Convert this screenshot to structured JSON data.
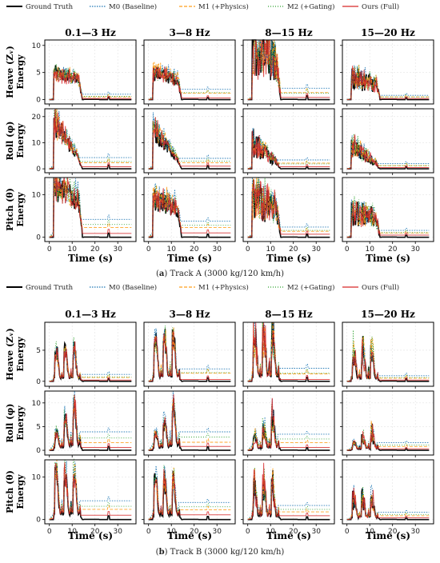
{
  "chart_data": {
    "type": "line",
    "legend": {
      "placement": "top",
      "entries": [
        "Ground Truth",
        "M0 (Baseline)",
        "M1 (+Physics)",
        "M2 (+Gating)",
        "Ours (Full)"
      ]
    },
    "colors": {
      "Ground Truth": "#000000",
      "M0 (Baseline)": "#1f77b4",
      "M1 (+Physics)": "#ff9f1c",
      "M2 (+Gating)": "#2ca02c",
      "Ours (Full)": "#d62728"
    },
    "columns": [
      "0.1—3 Hz",
      "3—8 Hz",
      "8—15 Hz",
      "15—20 Hz"
    ],
    "xlabel": "Time (s)",
    "xlim": [
      -2,
      38
    ],
    "xticks": [
      "0",
      "10",
      "20",
      "30"
    ],
    "grid": true,
    "panels": [
      {
        "caption_label": "a",
        "caption_text": "Track A (3000 kg/120 km/h)",
        "rows": [
          {
            "ylabel": "Heave (Zᵥ) Energy",
            "ylim": [
              -0.8,
              11
            ],
            "yticks": [
              "0",
              "5",
              "10"
            ],
            "peak": [
              5,
              5,
              9,
              4
            ],
            "plateau": {
              "M0 (Baseline)": [
                1.0,
                1.9,
                2.1,
                0.8
              ],
              "M1 (+Physics)": [
                0.5,
                1.2,
                1.3,
                0.5
              ],
              "M2 (+Gating)": [
                0.6,
                1.3,
                1.2,
                0.5
              ],
              "Ours (Full)": [
                0.2,
                0.3,
                0.4,
                0.2
              ]
            }
          },
          {
            "ylabel": "Roll (φ) Energy",
            "ylim": [
              -1.5,
              23
            ],
            "yticks": [
              "0",
              "10",
              "20"
            ],
            "peak": [
              18,
              15,
              10,
              9
            ],
            "plateau": {
              "M0 (Baseline)": [
                4.3,
                4.0,
                3.4,
                2.0
              ],
              "M1 (+Physics)": [
                2.3,
                2.3,
                2.2,
                1.2
              ],
              "M2 (+Gating)": [
                2.8,
                2.9,
                1.9,
                1.3
              ],
              "Ours (Full)": [
                0.8,
                1.0,
                0.8,
                0.5
              ]
            }
          },
          {
            "ylabel": "Pitch (θ) Energy",
            "ylim": [
              -1.0,
              14
            ],
            "yticks": [
              "0",
              "10"
            ],
            "peak": [
              12,
              9,
              9,
              6
            ],
            "plateau": {
              "M0 (Baseline)": [
                4.2,
                3.8,
                2.4,
                1.6
              ],
              "M1 (+Physics)": [
                2.3,
                2.3,
                1.4,
                1.0
              ],
              "M2 (+Gating)": [
                3.0,
                2.8,
                1.6,
                1.1
              ],
              "Ours (Full)": [
                0.9,
                1.0,
                0.7,
                0.5
              ]
            }
          }
        ]
      },
      {
        "caption_label": "b",
        "caption_text": "Track B (3000 kg/120 km/h)",
        "rows": [
          {
            "ylabel": "Heave (Zᵥ) Energy",
            "ylim": [
              -0.8,
              9.5
            ],
            "yticks": [
              "0",
              "5"
            ],
            "peak": [
              5,
              7,
              8,
              5
            ],
            "plateau": {
              "M0 (Baseline)": [
                1.1,
                2.0,
                2.1,
                0.9
              ],
              "M1 (+Physics)": [
                0.6,
                1.3,
                1.2,
                0.5
              ],
              "M2 (+Gating)": [
                0.7,
                1.4,
                1.3,
                0.6
              ],
              "Ours (Full)": [
                0.2,
                0.3,
                0.3,
                0.2
              ]
            }
          },
          {
            "ylabel": "Roll (φ) Energy",
            "ylim": [
              -1.0,
              12.5
            ],
            "yticks": [
              "0",
              "5",
              "10"
            ],
            "peak": [
              10,
              9,
              7,
              4
            ],
            "plateau": {
              "M0 (Baseline)": [
                3.9,
                3.9,
                3.4,
                1.6
              ],
              "M1 (+Physics)": [
                1.6,
                1.7,
                1.6,
                0.8
              ],
              "M2 (+Gating)": [
                2.6,
                2.8,
                2.4,
                1.1
              ],
              "Ours (Full)": [
                0.6,
                0.8,
                0.6,
                0.3
              ]
            }
          },
          {
            "ylabel": "Pitch (θ) Energy",
            "ylim": [
              -1.0,
              14
            ],
            "yticks": [
              "0",
              "10"
            ],
            "peak": [
              11,
              9,
              8,
              5
            ],
            "plateau": {
              "M0 (Baseline)": [
                4.4,
                4.0,
                3.3,
                1.7
              ],
              "M1 (+Physics)": [
                2.4,
                2.3,
                1.8,
                0.9
              ],
              "M2 (+Gating)": [
                3.1,
                3.0,
                2.4,
                1.2
              ],
              "Ours (Full)": [
                1.0,
                1.1,
                0.9,
                0.4
              ]
            }
          }
        ]
      }
    ]
  }
}
